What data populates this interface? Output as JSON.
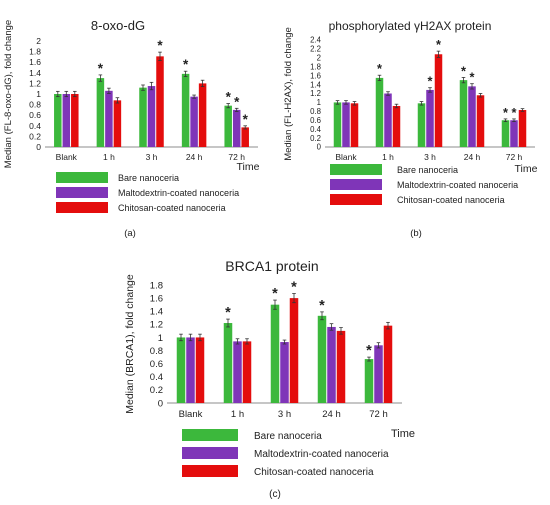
{
  "colors": {
    "bare": "#3cb83c",
    "malto": "#7f35b8",
    "chitosan": "#e40d0d",
    "axis": "#8c8c8c",
    "text": "#222222"
  },
  "chart_data": [
    {
      "type": "bar",
      "panel_label": "(a)",
      "title": "8-oxo-dG",
      "ylabel": "Median (FL-8-oxo-dG), fold change",
      "xlabel": "Time",
      "categories": [
        "Blank",
        "1 h",
        "3 h",
        "24 h",
        "72 h"
      ],
      "ylim": [
        0,
        2
      ],
      "yticks": [
        "0",
        "0.2",
        "0.4",
        "0.6",
        "0.8",
        "1",
        "1.2",
        "1.4",
        "1.6",
        "1.8",
        "2"
      ],
      "series": [
        {
          "name": "Bare nanoceria",
          "values": [
            1.0,
            1.3,
            1.12,
            1.38,
            0.78
          ],
          "errors": [
            0.05,
            0.06,
            0.05,
            0.05,
            0.04
          ],
          "stars": [
            false,
            true,
            false,
            true,
            true
          ]
        },
        {
          "name": "Maltodextrin-coated nanoceria",
          "values": [
            1.0,
            1.06,
            1.15,
            0.95,
            0.7
          ],
          "errors": [
            0.05,
            0.05,
            0.07,
            0.03,
            0.03
          ],
          "stars": [
            false,
            false,
            false,
            false,
            true
          ]
        },
        {
          "name": "Chitosan-coated nanoceria",
          "values": [
            1.0,
            0.88,
            1.71,
            1.2,
            0.37
          ],
          "errors": [
            0.05,
            0.05,
            0.08,
            0.06,
            0.03
          ],
          "stars": [
            false,
            false,
            true,
            false,
            true
          ]
        }
      ]
    },
    {
      "type": "bar",
      "panel_label": "(b)",
      "title": "phosphorylated γH2AX protein",
      "ylabel": "Median (FL-H2AX), fold change",
      "xlabel": "Time",
      "categories": [
        "Blank",
        "1 h",
        "3 h",
        "24 h",
        "72 h"
      ],
      "ylim": [
        0,
        2.4
      ],
      "yticks": [
        "0",
        "0.2",
        "0.4",
        "0.6",
        "0.8",
        "1",
        "1.2",
        "1.4",
        "1.6",
        "1.8",
        "2",
        "2.2",
        "2.4"
      ],
      "series": [
        {
          "name": "Bare nanoceria",
          "values": [
            1.0,
            1.55,
            0.98,
            1.5,
            0.6
          ],
          "errors": [
            0.04,
            0.06,
            0.04,
            0.06,
            0.03
          ],
          "stars": [
            false,
            true,
            false,
            true,
            true
          ]
        },
        {
          "name": "Maltodextrin-coated nanoceria",
          "values": [
            1.0,
            1.2,
            1.28,
            1.36,
            0.6
          ],
          "errors": [
            0.04,
            0.04,
            0.05,
            0.06,
            0.03
          ],
          "stars": [
            false,
            false,
            true,
            true,
            true
          ]
        },
        {
          "name": "Chitosan-coated nanoceria",
          "values": [
            0.98,
            0.92,
            2.08,
            1.16,
            0.83
          ],
          "errors": [
            0.04,
            0.04,
            0.07,
            0.04,
            0.03
          ],
          "stars": [
            false,
            false,
            true,
            false,
            false
          ]
        }
      ]
    },
    {
      "type": "bar",
      "panel_label": "(c)",
      "title": "BRCA1 protein",
      "ylabel": "Median (BRCA1), fold change",
      "xlabel": "Time",
      "categories": [
        "Blank",
        "1 h",
        "3 h",
        "24 h",
        "72 h"
      ],
      "ylim": [
        0,
        1.8
      ],
      "yticks": [
        "0",
        "0.2",
        "0.4",
        "0.6",
        "0.8",
        "1",
        "1.2",
        "1.4",
        "1.6",
        "1.8"
      ],
      "series": [
        {
          "name": "Bare nanoceria",
          "values": [
            1.0,
            1.22,
            1.5,
            1.33,
            0.67
          ],
          "errors": [
            0.05,
            0.06,
            0.07,
            0.06,
            0.03
          ],
          "stars": [
            false,
            true,
            true,
            true,
            true
          ]
        },
        {
          "name": "Maltodextrin-coated nanoceria",
          "values": [
            1.0,
            0.94,
            0.93,
            1.16,
            0.88
          ],
          "errors": [
            0.05,
            0.04,
            0.03,
            0.05,
            0.04
          ],
          "stars": [
            false,
            false,
            false,
            false,
            false
          ]
        },
        {
          "name": "Chitosan-coated nanoceria",
          "values": [
            1.0,
            0.94,
            1.6,
            1.1,
            1.18
          ],
          "errors": [
            0.05,
            0.04,
            0.07,
            0.05,
            0.05
          ],
          "stars": [
            false,
            false,
            true,
            false,
            false
          ]
        }
      ]
    }
  ]
}
